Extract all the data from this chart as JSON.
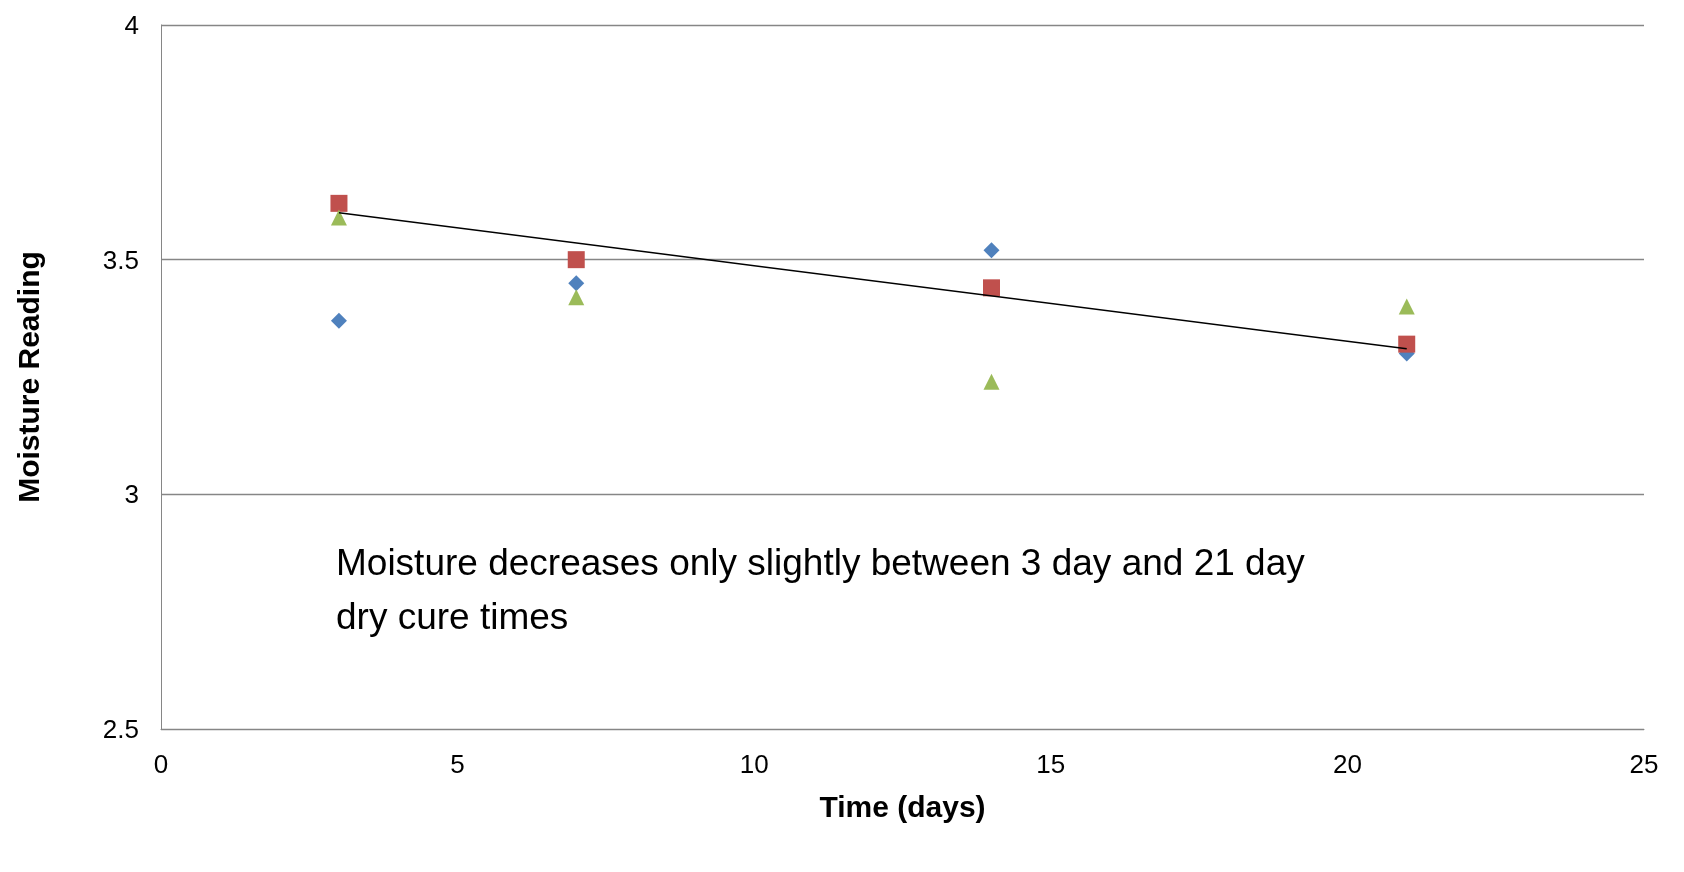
{
  "chart_data": {
    "type": "scatter",
    "xlabel": "Time (days)",
    "ylabel": "Moisture Reading",
    "xlim": [
      0,
      25
    ],
    "xticks": [
      0,
      5,
      10,
      15,
      20,
      25
    ],
    "ylim": [
      2.5,
      4
    ],
    "yticks": [
      2.5,
      3,
      3.5,
      4
    ],
    "grid": "y",
    "annotations": [
      "Moisture decreases only slightly between 3 day and 21 day dry cure times"
    ],
    "series": [
      {
        "color": "#4f81bd",
        "marker": "diamond",
        "x": [
          3,
          7,
          14,
          21
        ],
        "values": [
          3.37,
          3.45,
          3.52,
          3.3
        ]
      },
      {
        "color": "#c0504d",
        "marker": "square",
        "x": [
          3,
          7,
          14,
          21
        ],
        "values": [
          3.62,
          3.5,
          3.44,
          3.32
        ]
      },
      {
        "color": "#9bbb59",
        "marker": "triangle",
        "x": [
          3,
          7,
          14,
          21
        ],
        "values": [
          3.59,
          3.42,
          3.24,
          3.4
        ]
      },
      {
        "type": "line",
        "color": "#000000",
        "marker": "none",
        "x": [
          3,
          21
        ],
        "values": [
          3.6,
          3.31
        ]
      }
    ]
  }
}
